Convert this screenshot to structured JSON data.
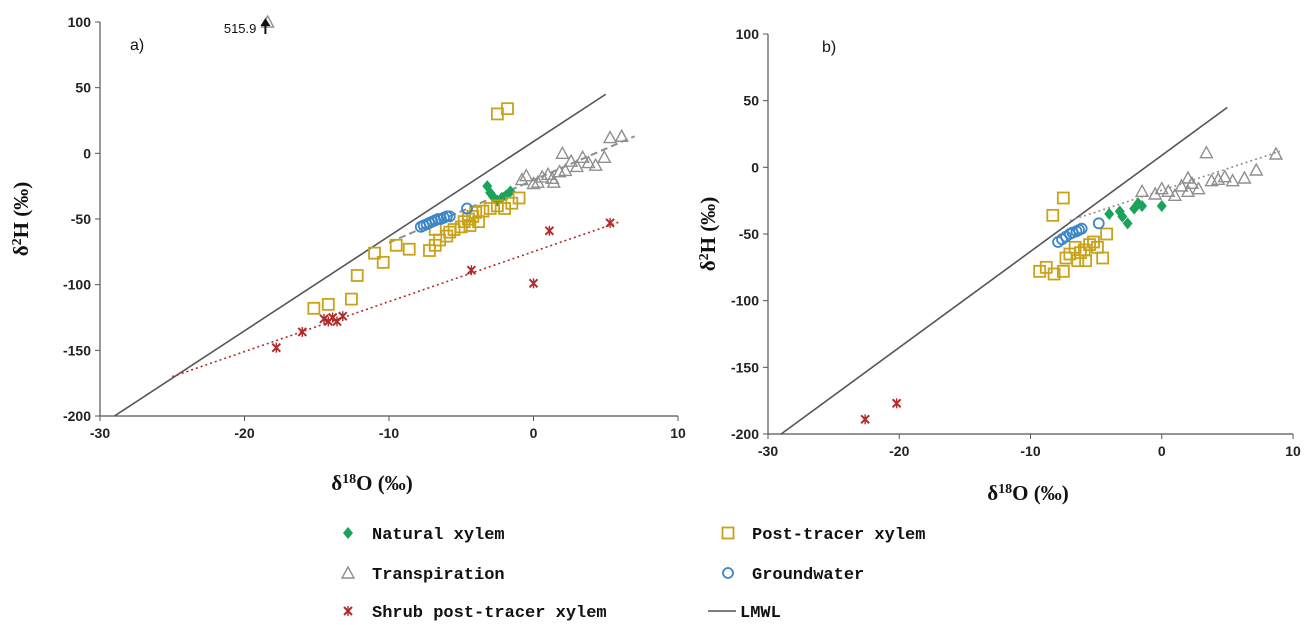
{
  "legend": {
    "natural_xylem": "Natural xylem",
    "post_tracer_xylem": "Post-tracer xylem",
    "transpiration": "Transpiration",
    "groundwater": "Groundwater",
    "shrub": "Shrub post-tracer xylem",
    "lmwl": "LMWL"
  },
  "colors": {
    "natural_xylem": "#1aa35a",
    "post_tracer_xylem": "#c9a21a",
    "transpiration": "#8f8f8f",
    "groundwater": "#3a86c8",
    "shrub": "#b22a2a",
    "lmwl": "#555555"
  },
  "chart_data": [
    {
      "type": "scatter",
      "panel": "a)",
      "xlabel": "δ18O (‰)",
      "ylabel": "δ2H (‰)",
      "xlim": [
        -30,
        10
      ],
      "ylim": [
        -200,
        100
      ],
      "x_ticks": [
        -30,
        -20,
        -10,
        0,
        10
      ],
      "y_ticks": [
        -200,
        -150,
        -100,
        -50,
        0,
        50,
        100
      ],
      "annotation": {
        "text": "515.9",
        "x": -18,
        "y": 100
      },
      "lmwl": [
        [
          -29,
          -200
        ],
        [
          5,
          45
        ]
      ],
      "trend_lines": [
        {
          "series": "transpiration",
          "points": [
            [
              -10,
              -68
            ],
            [
              7,
              13
            ]
          ]
        },
        {
          "series": "shrub",
          "points": [
            [
              -25,
              -170
            ],
            [
              6,
              -52
            ]
          ]
        }
      ],
      "series": [
        {
          "name": "Natural xylem",
          "key": "natural_xylem",
          "points": [
            [
              -3.2,
              -25
            ],
            [
              -3.0,
              -30
            ],
            [
              -2.8,
              -33
            ],
            [
              -2.5,
              -36
            ],
            [
              -2.2,
              -34
            ],
            [
              -1.9,
              -32
            ],
            [
              -1.6,
              -29
            ]
          ]
        },
        {
          "name": "Post-tracer xylem",
          "key": "post_tracer_xylem",
          "points": [
            [
              -2.5,
              30
            ],
            [
              -1.8,
              34
            ],
            [
              -7.2,
              -74
            ],
            [
              -6.8,
              -70
            ],
            [
              -6.5,
              -66
            ],
            [
              -6.0,
              -63
            ],
            [
              -5.8,
              -60
            ],
            [
              -5.5,
              -58
            ],
            [
              -5.0,
              -56
            ],
            [
              -4.8,
              -52
            ],
            [
              -4.5,
              -50
            ],
            [
              -4.2,
              -48
            ],
            [
              -4.0,
              -45
            ],
            [
              -3.8,
              -52
            ],
            [
              -3.5,
              -44
            ],
            [
              -3.0,
              -42
            ],
            [
              -2.5,
              -40
            ],
            [
              -2.0,
              -42
            ],
            [
              -1.5,
              -38
            ],
            [
              -1.0,
              -34
            ],
            [
              -11,
              -76
            ],
            [
              -10.4,
              -83
            ],
            [
              -9.5,
              -70
            ],
            [
              -8.6,
              -73
            ],
            [
              -12.2,
              -93
            ],
            [
              -14.2,
              -115
            ],
            [
              -15.2,
              -118
            ],
            [
              -12.6,
              -111
            ],
            [
              -6.8,
              -58
            ],
            [
              -4.4,
              -55
            ]
          ]
        },
        {
          "name": "Transpiration",
          "key": "transpiration",
          "points": [
            [
              -18.4,
              100
            ],
            [
              -0.8,
              -20
            ],
            [
              -0.5,
              -17
            ],
            [
              0,
              -23
            ],
            [
              0.3,
              -22
            ],
            [
              0.6,
              -18
            ],
            [
              1.0,
              -16
            ],
            [
              1.4,
              -22
            ],
            [
              1.8,
              -14
            ],
            [
              2.2,
              -13
            ],
            [
              2.6,
              -6
            ],
            [
              3.0,
              -10
            ],
            [
              3.4,
              -3
            ],
            [
              3.8,
              -7
            ],
            [
              4.3,
              -9
            ],
            [
              4.9,
              -3
            ],
            [
              5.3,
              12
            ],
            [
              6.1,
              13
            ],
            [
              2.0,
              0
            ],
            [
              1.3,
              -19
            ]
          ]
        },
        {
          "name": "Groundwater",
          "key": "groundwater",
          "points": [
            [
              -7.8,
              -56
            ],
            [
              -7.6,
              -55
            ],
            [
              -7.4,
              -54
            ],
            [
              -7.2,
              -53
            ],
            [
              -7.0,
              -52
            ],
            [
              -6.8,
              -51
            ],
            [
              -6.6,
              -50
            ],
            [
              -6.4,
              -50
            ],
            [
              -6.2,
              -49
            ],
            [
              -6.0,
              -48
            ],
            [
              -5.8,
              -48
            ],
            [
              -4.6,
              -42
            ]
          ]
        },
        {
          "name": "Shrub post-tracer xylem",
          "key": "shrub",
          "points": [
            [
              -17.8,
              -148
            ],
            [
              -16.0,
              -136
            ],
            [
              -14.5,
              -126
            ],
            [
              -14.2,
              -128
            ],
            [
              -13.9,
              -125
            ],
            [
              -13.6,
              -128
            ],
            [
              -13.2,
              -124
            ],
            [
              -4.3,
              -89
            ],
            [
              0,
              -99
            ],
            [
              1.1,
              -59
            ],
            [
              5.3,
              -53
            ]
          ]
        }
      ]
    },
    {
      "type": "scatter",
      "panel": "b)",
      "xlabel": "δ18O (‰)",
      "ylabel": "δ2H (‰)",
      "xlim": [
        -30,
        10
      ],
      "ylim": [
        -200,
        100
      ],
      "x_ticks": [
        -30,
        -20,
        -10,
        0,
        10
      ],
      "y_ticks": [
        -200,
        -150,
        -100,
        -50,
        0,
        50,
        100
      ],
      "lmwl": [
        [
          -29,
          -200
        ],
        [
          5,
          45
        ]
      ],
      "trend_lines": [
        {
          "series": "transpiration",
          "points": [
            [
              -7,
              -40
            ],
            [
              9,
              12
            ]
          ]
        }
      ],
      "series": [
        {
          "name": "Natural xylem",
          "key": "natural_xylem",
          "points": [
            [
              -4,
              -35
            ],
            [
              -3,
              -37
            ],
            [
              -3.2,
              -33
            ],
            [
              -2.1,
              -31
            ],
            [
              -1.8,
              -27
            ],
            [
              -1.5,
              -29
            ],
            [
              -2.6,
              -42
            ],
            [
              0,
              -29
            ]
          ]
        },
        {
          "name": "Post-tracer xylem",
          "key": "post_tracer_xylem",
          "points": [
            [
              -7.5,
              -23
            ],
            [
              -8.3,
              -36
            ],
            [
              -9.3,
              -78
            ],
            [
              -8.8,
              -75
            ],
            [
              -8.2,
              -80
            ],
            [
              -7.5,
              -78
            ],
            [
              -7.3,
              -68
            ],
            [
              -7.0,
              -65
            ],
            [
              -6.6,
              -60
            ],
            [
              -6.2,
              -64
            ],
            [
              -5.9,
              -62
            ],
            [
              -5.5,
              -58
            ],
            [
              -5.2,
              -56
            ],
            [
              -4.9,
              -60
            ],
            [
              -4.5,
              -68
            ],
            [
              -4.2,
              -50
            ],
            [
              -6.4,
              -70
            ],
            [
              -5.8,
              -70
            ]
          ]
        },
        {
          "name": "Transpiration",
          "key": "transpiration",
          "points": [
            [
              -1.5,
              -18
            ],
            [
              -0.5,
              -20
            ],
            [
              0,
              -16
            ],
            [
              0.5,
              -18
            ],
            [
              1.0,
              -21
            ],
            [
              1.5,
              -14
            ],
            [
              2.0,
              -18
            ],
            [
              2.3,
              -12
            ],
            [
              2.8,
              -16
            ],
            [
              3.4,
              11
            ],
            [
              3.8,
              -10
            ],
            [
              4.3,
              -9
            ],
            [
              4.8,
              -7
            ],
            [
              5.4,
              -10
            ],
            [
              6.3,
              -8
            ],
            [
              7.2,
              -2
            ],
            [
              8.7,
              10
            ],
            [
              2.0,
              -8
            ]
          ]
        },
        {
          "name": "Groundwater",
          "key": "groundwater",
          "points": [
            [
              -7.9,
              -56
            ],
            [
              -7.6,
              -54
            ],
            [
              -7.3,
              -52
            ],
            [
              -7.0,
              -50
            ],
            [
              -6.8,
              -49
            ],
            [
              -6.5,
              -48
            ],
            [
              -6.3,
              -47
            ],
            [
              -6.1,
              -46
            ],
            [
              -4.8,
              -42
            ]
          ]
        },
        {
          "name": "Shrub post-tracer xylem",
          "key": "shrub",
          "points": [
            [
              -22.6,
              -189
            ],
            [
              -20.2,
              -177
            ]
          ]
        }
      ]
    }
  ]
}
